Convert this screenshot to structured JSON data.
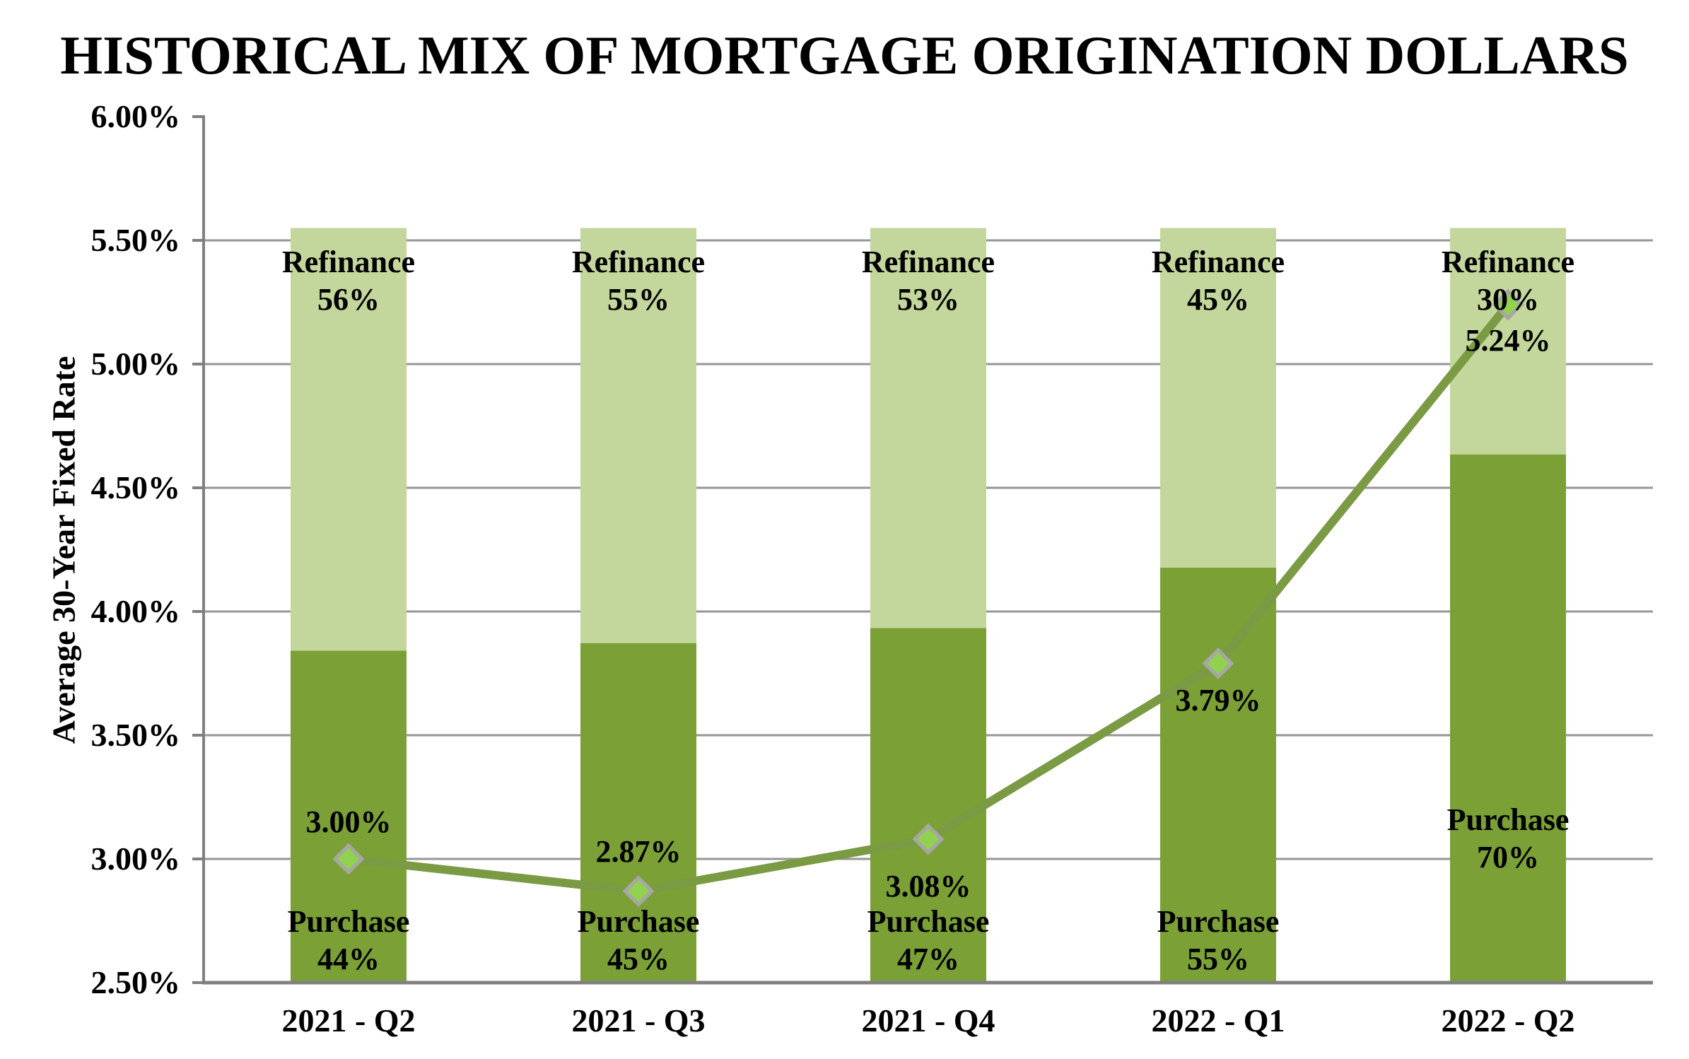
{
  "title": "HISTORICAL MIX OF MORTGAGE ORIGINATION DOLLARS",
  "chart_data": {
    "type": "combo-stacked-bar-line",
    "title": "HISTORICAL MIX OF MORTGAGE ORIGINATION DOLLARS",
    "ylabel": "Average 30-Year Fixed Rate",
    "xlabel": "",
    "categories": [
      "2021 - Q2",
      "2021 - Q3",
      "2021 - Q4",
      "2022 - Q1",
      "2022 - Q2"
    ],
    "ylim": [
      2.5,
      6.0
    ],
    "y_ticks": [
      "6.00%",
      "5.50%",
      "5.00%",
      "4.50%",
      "4.00%",
      "3.50%",
      "3.00%",
      "2.50%"
    ],
    "y_tick_values": [
      6.0,
      5.5,
      5.0,
      4.5,
      4.0,
      3.5,
      3.0,
      2.5
    ],
    "grid": "horizontal",
    "bar_top_value": 5.55,
    "series": [
      {
        "name": "Purchase",
        "type": "stacked-bar-segment",
        "percent_values": [
          44,
          45,
          47,
          55,
          70
        ]
      },
      {
        "name": "Refinance",
        "type": "stacked-bar-segment",
        "percent_values": [
          56,
          55,
          53,
          45,
          30
        ]
      },
      {
        "name": "Average 30-Year Fixed Rate",
        "type": "line",
        "values": [
          3.0,
          2.87,
          3.08,
          3.79,
          5.24
        ]
      }
    ],
    "bar_labels": {
      "purchase": [
        {
          "name": "Purchase",
          "pct": "44%"
        },
        {
          "name": "Purchase",
          "pct": "45%"
        },
        {
          "name": "Purchase",
          "pct": "47%"
        },
        {
          "name": "Purchase",
          "pct": "55%"
        },
        {
          "name": "Purchase",
          "pct": "70%"
        }
      ],
      "refinance": [
        {
          "name": "Refinance",
          "pct": "56%"
        },
        {
          "name": "Refinance",
          "pct": "55%"
        },
        {
          "name": "Refinance",
          "pct": "53%"
        },
        {
          "name": "Refinance",
          "pct": "45%"
        },
        {
          "name": "Refinance",
          "pct": "30%"
        }
      ]
    },
    "rate_labels": [
      "3.00%",
      "2.87%",
      "3.08%",
      "3.79%",
      "5.24%"
    ],
    "colors": {
      "purchase": "#7BA035",
      "refinance": "#C3D69B",
      "line": "#7A9A43",
      "marker_fill": "#92D050",
      "marker_stroke": "#A6A6A6",
      "gridline": "#969696",
      "axis": "#808080",
      "text": "#000000"
    },
    "legend": "none"
  }
}
